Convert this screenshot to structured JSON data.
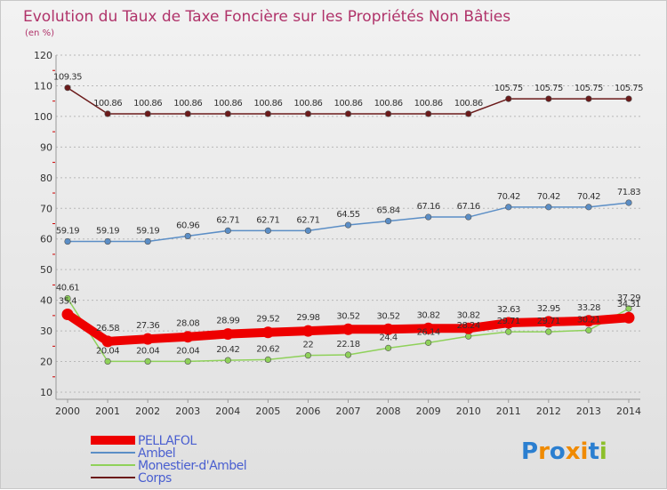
{
  "chart_data": {
    "type": "line",
    "title": "Evolution du Taux de Taxe Foncière sur les Propriétés Non Bâties",
    "subtitle": "(en %)",
    "xlabel": "",
    "ylabel": "",
    "x": [
      "2000",
      "2001",
      "2002",
      "2003",
      "2004",
      "2005",
      "2006",
      "2007",
      "2008",
      "2009",
      "2010",
      "2011",
      "2012",
      "2013",
      "2014"
    ],
    "ylim": [
      10,
      120
    ],
    "yticks": [
      "10",
      "20",
      "30",
      "40",
      "50",
      "60",
      "70",
      "80",
      "90",
      "100",
      "110",
      "120"
    ],
    "grid": "horizontal dashed",
    "legend_position": "bottom-left",
    "series": [
      {
        "name": "Corps",
        "color": "#6b1a1a",
        "values": [
          109.35,
          100.86,
          100.86,
          100.86,
          100.86,
          100.86,
          100.86,
          100.86,
          100.86,
          100.86,
          100.86,
          105.75,
          105.75,
          105.75,
          105.75
        ],
        "labels": [
          "109.35",
          "100.86",
          "100.86",
          "100.86",
          "100.86",
          "100.86",
          "100.86",
          "100.86",
          "100.86",
          "100.86",
          "100.86",
          "105.75",
          "105.75",
          "105.75",
          "105.75"
        ]
      },
      {
        "name": "Ambel",
        "color": "#5b8ec6",
        "values": [
          59.19,
          59.19,
          59.19,
          60.96,
          62.71,
          62.71,
          62.71,
          64.55,
          65.84,
          67.16,
          67.16,
          70.42,
          70.42,
          70.42,
          71.83
        ],
        "labels": [
          "59.19",
          "59.19",
          "59.19",
          "60.96",
          "62.71",
          "62.71",
          "62.71",
          "64.55",
          "65.84",
          "67.16",
          "67.16",
          "70.42",
          "70.42",
          "70.42",
          "71.83"
        ]
      },
      {
        "name": "Monestier-d'Ambel",
        "color": "#8fd15a",
        "values": [
          40.61,
          20.04,
          20.04,
          20.04,
          20.42,
          20.62,
          22,
          22.18,
          24.4,
          26.14,
          28.24,
          29.71,
          29.71,
          30.21,
          37.29
        ],
        "labels": [
          "40.61",
          "20.04",
          "20.04",
          "20.04",
          "20.42",
          "20.62",
          "22",
          "22.18",
          "24.4",
          "26.14",
          "28.24",
          "29.71",
          "29.71",
          "30.21",
          "37.29"
        ]
      },
      {
        "name": "PELLAFOL",
        "color": "#ee0000",
        "values": [
          35.4,
          26.58,
          27.36,
          28.08,
          28.99,
          29.52,
          29.98,
          30.52,
          30.52,
          30.82,
          30.82,
          32.63,
          32.95,
          33.28,
          34.31
        ],
        "labels": [
          "35.4",
          "26.58",
          "27.36",
          "28.08",
          "28.99",
          "29.52",
          "29.98",
          "30.52",
          "30.52",
          "30.82",
          "30.82",
          "32.63",
          "32.95",
          "33.28",
          "34.31"
        ]
      }
    ],
    "legend": [
      "PELLAFOL",
      "Ambel",
      "Monestier-d'Ambel",
      "Corps"
    ]
  },
  "logo": {
    "text": "Proxiti"
  }
}
